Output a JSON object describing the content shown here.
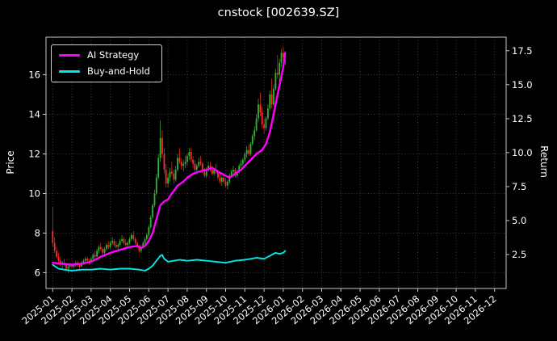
{
  "window": {
    "title": "cnstock [002639.SZ]"
  },
  "chart_data": {
    "type": "candlestick",
    "title": "cnstock [002639.SZ]",
    "ylabel_left": "Price",
    "ylabel_right": "Return",
    "background": "#000000",
    "grid": true,
    "legend_position": "upper-left",
    "x_tick_labels": [
      "2025-01",
      "2025-02",
      "2025-03",
      "2025-04",
      "2025-05",
      "2025-06",
      "2025-07",
      "2025-08",
      "2025-09",
      "2025-10",
      "2025-11",
      "2025-12",
      "2026-01",
      "2026-02",
      "2026-03",
      "2026-04",
      "2026-05",
      "2026-06",
      "2026-07",
      "2026-08",
      "2026-09",
      "2026-10",
      "2026-11",
      "2026-12"
    ],
    "y_left_ticks": [
      6,
      8,
      10,
      12,
      14,
      16
    ],
    "y_right_ticks": [
      2.5,
      5.0,
      7.5,
      10.0,
      12.5,
      15.0,
      17.5
    ],
    "x_domain_months": [
      -0.35,
      23.6
    ],
    "y_left_domain": [
      5.2,
      17.9
    ],
    "y_right_domain": [
      0,
      18.5
    ],
    "candle_x_step_months": 0.1,
    "candle_colors": {
      "up": "#2eb82e",
      "down": "#ff2a2a"
    },
    "candles_ohlc": [
      [
        8.1,
        9.3,
        7.3,
        7.5
      ],
      [
        7.5,
        7.8,
        7.0,
        7.1
      ],
      [
        7.1,
        7.3,
        6.7,
        6.8
      ],
      [
        6.8,
        7.0,
        6.5,
        6.6
      ],
      [
        6.6,
        6.8,
        6.3,
        6.4
      ],
      [
        6.4,
        6.6,
        6.2,
        6.5
      ],
      [
        6.5,
        6.7,
        6.3,
        6.4
      ],
      [
        6.4,
        6.5,
        6.1,
        6.2
      ],
      [
        6.2,
        6.4,
        6.0,
        6.3
      ],
      [
        6.3,
        6.5,
        6.2,
        6.4
      ],
      [
        6.4,
        6.5,
        6.2,
        6.3
      ],
      [
        6.3,
        6.5,
        6.2,
        6.4
      ],
      [
        6.4,
        6.6,
        6.3,
        6.5
      ],
      [
        6.5,
        6.6,
        6.3,
        6.4
      ],
      [
        6.4,
        6.5,
        6.2,
        6.3
      ],
      [
        6.3,
        6.6,
        6.3,
        6.5
      ],
      [
        6.5,
        6.7,
        6.4,
        6.6
      ],
      [
        6.6,
        6.8,
        6.5,
        6.7
      ],
      [
        6.7,
        6.8,
        6.5,
        6.6
      ],
      [
        6.6,
        6.7,
        6.4,
        6.5
      ],
      [
        6.5,
        6.8,
        6.5,
        6.7
      ],
      [
        6.7,
        7.0,
        6.6,
        6.9
      ],
      [
        6.9,
        7.1,
        6.7,
        6.8
      ],
      [
        6.8,
        7.2,
        6.8,
        7.1
      ],
      [
        7.1,
        7.4,
        7.0,
        7.3
      ],
      [
        7.3,
        7.5,
        7.1,
        7.2
      ],
      [
        7.2,
        7.3,
        6.9,
        7.0
      ],
      [
        7.0,
        7.3,
        6.9,
        7.2
      ],
      [
        7.2,
        7.5,
        7.1,
        7.4
      ],
      [
        7.4,
        7.6,
        7.2,
        7.3
      ],
      [
        7.3,
        7.6,
        7.2,
        7.5
      ],
      [
        7.5,
        7.8,
        7.4,
        7.6
      ],
      [
        7.6,
        7.7,
        7.3,
        7.4
      ],
      [
        7.4,
        7.6,
        7.2,
        7.3
      ],
      [
        7.3,
        7.5,
        7.1,
        7.4
      ],
      [
        7.4,
        7.7,
        7.3,
        7.6
      ],
      [
        7.6,
        7.9,
        7.5,
        7.7
      ],
      [
        7.7,
        7.8,
        7.4,
        7.5
      ],
      [
        7.5,
        7.7,
        7.3,
        7.4
      ],
      [
        7.4,
        7.6,
        7.3,
        7.5
      ],
      [
        7.5,
        7.8,
        7.4,
        7.7
      ],
      [
        7.7,
        8.0,
        7.6,
        7.9
      ],
      [
        7.9,
        8.1,
        7.6,
        7.7
      ],
      [
        7.7,
        7.8,
        7.4,
        7.5
      ],
      [
        7.5,
        7.6,
        7.2,
        7.3
      ],
      [
        7.3,
        7.4,
        7.0,
        7.1
      ],
      [
        7.1,
        7.4,
        7.0,
        7.3
      ],
      [
        7.3,
        7.6,
        7.2,
        7.5
      ],
      [
        7.5,
        7.8,
        7.4,
        7.7
      ],
      [
        7.7,
        8.0,
        7.6,
        7.9
      ],
      [
        7.9,
        8.4,
        7.8,
        8.3
      ],
      [
        8.3,
        8.9,
        8.2,
        8.8
      ],
      [
        8.8,
        9.5,
        8.7,
        9.4
      ],
      [
        9.4,
        10.2,
        9.3,
        10.0
      ],
      [
        10.0,
        11.0,
        9.9,
        10.8
      ],
      [
        10.8,
        12.0,
        10.7,
        11.8
      ],
      [
        11.8,
        13.7,
        11.6,
        12.8
      ],
      [
        12.8,
        13.2,
        11.8,
        12.0
      ],
      [
        12.0,
        12.3,
        11.0,
        11.2
      ],
      [
        11.2,
        11.5,
        10.3,
        10.5
      ],
      [
        10.5,
        11.0,
        10.3,
        10.8
      ],
      [
        10.8,
        11.3,
        10.6,
        11.1
      ],
      [
        11.1,
        11.6,
        10.9,
        11.0
      ],
      [
        11.0,
        11.2,
        10.5,
        10.7
      ],
      [
        10.7,
        11.4,
        10.6,
        11.2
      ],
      [
        11.2,
        12.0,
        11.1,
        11.8
      ],
      [
        11.8,
        12.3,
        11.5,
        11.6
      ],
      [
        11.6,
        11.8,
        11.2,
        11.4
      ],
      [
        11.4,
        11.7,
        11.1,
        11.5
      ],
      [
        11.5,
        11.9,
        11.3,
        11.6
      ],
      [
        11.6,
        12.0,
        11.4,
        11.9
      ],
      [
        11.9,
        12.3,
        11.7,
        12.1
      ],
      [
        12.1,
        12.3,
        11.6,
        11.7
      ],
      [
        11.7,
        11.9,
        11.3,
        11.5
      ],
      [
        11.5,
        11.7,
        11.1,
        11.2
      ],
      [
        11.2,
        11.5,
        11.0,
        11.4
      ],
      [
        11.4,
        11.8,
        11.3,
        11.6
      ],
      [
        11.6,
        11.9,
        11.4,
        11.5
      ],
      [
        11.5,
        11.6,
        11.0,
        11.1
      ],
      [
        11.1,
        11.3,
        10.8,
        10.9
      ],
      [
        10.9,
        11.3,
        10.8,
        11.2
      ],
      [
        11.2,
        11.6,
        11.1,
        11.4
      ],
      [
        11.4,
        11.6,
        11.1,
        11.2
      ],
      [
        11.2,
        11.4,
        10.9,
        11.0
      ],
      [
        11.0,
        11.3,
        10.9,
        11.2
      ],
      [
        11.2,
        11.5,
        11.0,
        11.1
      ],
      [
        11.1,
        11.2,
        10.7,
        10.8
      ],
      [
        10.8,
        11.0,
        10.5,
        10.6
      ],
      [
        10.6,
        10.9,
        10.4,
        10.8
      ],
      [
        10.8,
        11.0,
        10.5,
        10.6
      ],
      [
        10.6,
        10.8,
        10.3,
        10.4
      ],
      [
        10.4,
        10.7,
        10.2,
        10.6
      ],
      [
        10.6,
        11.0,
        10.5,
        10.9
      ],
      [
        10.9,
        11.2,
        10.8,
        11.1
      ],
      [
        11.1,
        11.4,
        11.0,
        11.2
      ],
      [
        11.2,
        11.3,
        10.8,
        10.9
      ],
      [
        10.9,
        11.2,
        10.8,
        11.1
      ],
      [
        11.1,
        11.5,
        11.0,
        11.4
      ],
      [
        11.4,
        11.7,
        11.3,
        11.5
      ],
      [
        11.5,
        11.8,
        11.4,
        11.7
      ],
      [
        11.7,
        12.1,
        11.6,
        12.0
      ],
      [
        12.0,
        12.4,
        11.8,
        12.2
      ],
      [
        12.2,
        12.5,
        11.9,
        12.0
      ],
      [
        12.0,
        12.6,
        11.9,
        12.5
      ],
      [
        12.5,
        13.0,
        12.4,
        12.9
      ],
      [
        12.9,
        13.4,
        12.7,
        13.2
      ],
      [
        13.2,
        14.0,
        13.1,
        13.8
      ],
      [
        13.8,
        14.8,
        13.6,
        14.5
      ],
      [
        14.5,
        15.1,
        13.9,
        14.1
      ],
      [
        14.1,
        14.4,
        13.3,
        13.5
      ],
      [
        13.5,
        13.8,
        13.0,
        13.3
      ],
      [
        13.3,
        13.9,
        13.2,
        13.8
      ],
      [
        13.8,
        14.5,
        13.7,
        14.3
      ],
      [
        14.3,
        15.2,
        14.2,
        15.0
      ],
      [
        15.0,
        15.8,
        14.3,
        14.5
      ],
      [
        14.5,
        15.5,
        14.4,
        15.3
      ],
      [
        15.3,
        16.3,
        15.2,
        16.1
      ],
      [
        16.1,
        17.0,
        15.8,
        16.0
      ],
      [
        16.0,
        16.8,
        15.6,
        16.6
      ],
      [
        16.6,
        17.3,
        16.4,
        17.1
      ],
      [
        17.1,
        17.4,
        16.7,
        16.9
      ],
      [
        16.9,
        17.2,
        16.5,
        17.0
      ]
    ],
    "series": [
      {
        "name": "AI Strategy",
        "color": "#ff00ff",
        "points": [
          [
            0,
            6.5
          ],
          [
            0.5,
            6.45
          ],
          [
            1,
            6.4
          ],
          [
            1.5,
            6.45
          ],
          [
            2,
            6.55
          ],
          [
            2.5,
            6.8
          ],
          [
            3,
            7.0
          ],
          [
            3.5,
            7.15
          ],
          [
            4,
            7.3
          ],
          [
            4.4,
            7.35
          ],
          [
            4.6,
            7.25
          ],
          [
            4.8,
            7.35
          ],
          [
            5,
            7.6
          ],
          [
            5.2,
            8.0
          ],
          [
            5.4,
            8.7
          ],
          [
            5.6,
            9.4
          ],
          [
            5.8,
            9.6
          ],
          [
            6,
            9.7
          ],
          [
            6.2,
            10.0
          ],
          [
            6.5,
            10.4
          ],
          [
            6.8,
            10.6
          ],
          [
            7,
            10.8
          ],
          [
            7.3,
            11.0
          ],
          [
            7.6,
            11.1
          ],
          [
            8,
            11.2
          ],
          [
            8.3,
            11.3
          ],
          [
            8.6,
            11.1
          ],
          [
            9,
            10.9
          ],
          [
            9.2,
            10.8
          ],
          [
            9.5,
            11.0
          ],
          [
            9.8,
            11.2
          ],
          [
            10,
            11.4
          ],
          [
            10.3,
            11.7
          ],
          [
            10.6,
            12.0
          ],
          [
            10.9,
            12.2
          ],
          [
            11.1,
            12.5
          ],
          [
            11.3,
            13.1
          ],
          [
            11.5,
            14.0
          ],
          [
            11.7,
            15.0
          ],
          [
            11.9,
            15.9
          ],
          [
            12.0,
            16.4
          ],
          [
            12.1,
            17.1
          ]
        ]
      },
      {
        "name": "Buy-and-Hold",
        "color": "#00e8e8",
        "points": [
          [
            0,
            6.4
          ],
          [
            0.3,
            6.2
          ],
          [
            0.6,
            6.15
          ],
          [
            1,
            6.1
          ],
          [
            1.5,
            6.15
          ],
          [
            2,
            6.15
          ],
          [
            2.5,
            6.2
          ],
          [
            3,
            6.15
          ],
          [
            3.5,
            6.2
          ],
          [
            4,
            6.2
          ],
          [
            4.5,
            6.15
          ],
          [
            4.8,
            6.1
          ],
          [
            5,
            6.2
          ],
          [
            5.2,
            6.35
          ],
          [
            5.4,
            6.6
          ],
          [
            5.6,
            6.85
          ],
          [
            5.7,
            6.9
          ],
          [
            5.8,
            6.7
          ],
          [
            6,
            6.55
          ],
          [
            6.3,
            6.6
          ],
          [
            6.6,
            6.65
          ],
          [
            7,
            6.6
          ],
          [
            7.5,
            6.65
          ],
          [
            8,
            6.6
          ],
          [
            8.5,
            6.55
          ],
          [
            9,
            6.5
          ],
          [
            9.5,
            6.6
          ],
          [
            10,
            6.65
          ],
          [
            10.3,
            6.7
          ],
          [
            10.6,
            6.75
          ],
          [
            11,
            6.7
          ],
          [
            11.2,
            6.8
          ],
          [
            11.4,
            6.9
          ],
          [
            11.6,
            7.0
          ],
          [
            11.8,
            6.95
          ],
          [
            12,
            7.0
          ],
          [
            12.1,
            7.1
          ]
        ]
      }
    ]
  }
}
